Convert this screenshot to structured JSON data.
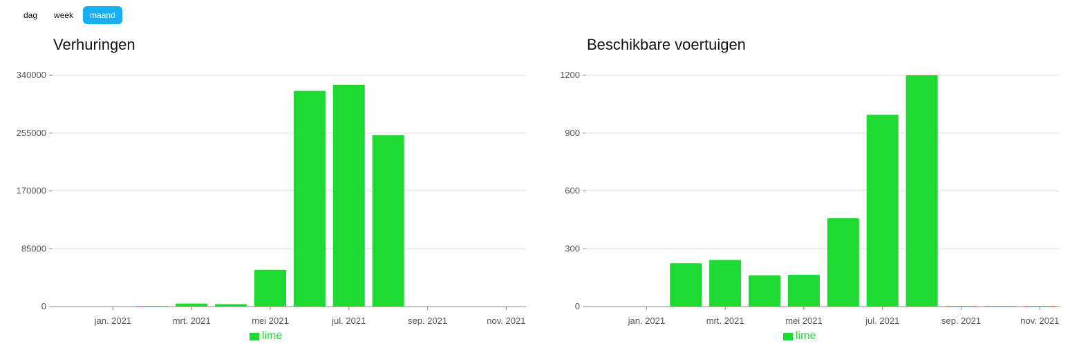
{
  "periods": [
    {
      "label": "dag",
      "active": false
    },
    {
      "label": "week",
      "active": false
    },
    {
      "label": "maand",
      "active": true
    }
  ],
  "chart_data": [
    {
      "type": "bar",
      "title": "Verhuringen",
      "color": "#1ed932",
      "x_ticks": [
        "jan. 2021",
        "mrt. 2021",
        "mei 2021",
        "jul. 2021",
        "sep. 2021",
        "nov. 2021"
      ],
      "y_ticks": [
        "0",
        "85000",
        "170000",
        "255000",
        "340000"
      ],
      "ylim": [
        0,
        340000
      ],
      "series": [
        {
          "name": "lime",
          "categories": [
            "jan. 2021",
            "feb. 2021",
            "mrt. 2021",
            "apr. 2021",
            "mei 2021",
            "jun. 2021",
            "jul. 2021",
            "aug. 2021",
            "sep. 2021",
            "okt. 2021",
            "nov. 2021"
          ],
          "values": [
            0,
            800,
            4500,
            3500,
            54000,
            317000,
            326000,
            252000,
            0,
            0,
            0
          ]
        }
      ],
      "legend": "bottom-center",
      "grid": true
    },
    {
      "type": "bar",
      "title": "Beschikbare voertuigen",
      "color": "#1ed932",
      "x_ticks": [
        "jan. 2021",
        "mrt. 2021",
        "mei 2021",
        "jul. 2021",
        "sep. 2021",
        "nov. 2021"
      ],
      "y_ticks": [
        "0",
        "300",
        "600",
        "900",
        "1200"
      ],
      "ylim": [
        0,
        1200
      ],
      "series": [
        {
          "name": "lime",
          "categories": [
            "jan. 2021",
            "feb. 2021",
            "mrt. 2021",
            "apr. 2021",
            "mei 2021",
            "jun. 2021",
            "jul. 2021",
            "aug. 2021",
            "sep. 2021",
            "okt. 2021",
            "nov. 2021"
          ],
          "values": [
            0,
            225,
            242,
            162,
            165,
            458,
            995,
            1200,
            2,
            2,
            2
          ]
        }
      ],
      "legend": "bottom-center",
      "grid": true
    }
  ]
}
